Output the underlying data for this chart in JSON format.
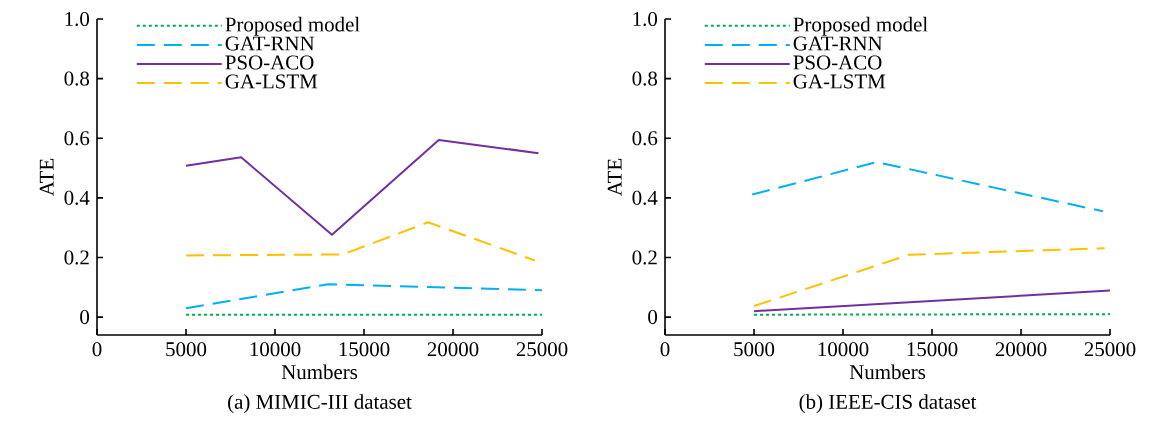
{
  "chart_data": [
    {
      "type": "line",
      "title": "(a) MIMIC-III dataset",
      "xlabel": "Numbers",
      "ylabel": "ATE",
      "xlim": [
        0,
        25000
      ],
      "ylim": [
        -0.06,
        1.0
      ],
      "xticks": [
        0,
        5000,
        10000,
        15000,
        20000,
        25000
      ],
      "yticks": [
        0,
        0.2,
        0.4,
        0.6,
        0.8,
        {
          "value": 1.0,
          "label": "1.0"
        }
      ],
      "legend": "top left",
      "series": [
        {
          "name": "Proposed model",
          "color": "#00b050",
          "line_style": "dotted",
          "x": [
            5000,
            25000
          ],
          "values": [
            0.008,
            0.008
          ]
        },
        {
          "name": "GAT-RNN",
          "color": "#00b0f0",
          "line_style": "dashed",
          "x": [
            5000,
            13000,
            25000
          ],
          "values": [
            0.03,
            0.11,
            0.09
          ]
        },
        {
          "name": "PSO-ACO",
          "color": "#7030a0",
          "line_style": "solid",
          "x": [
            5000,
            8100,
            13200,
            19200,
            24800
          ],
          "values": [
            0.508,
            0.536,
            0.276,
            0.594,
            0.55
          ]
        },
        {
          "name": "GA-LSTM",
          "color": "#ffc000",
          "line_style": "dashed",
          "x": [
            5000,
            13800,
            18600,
            24600
          ],
          "values": [
            0.207,
            0.21,
            0.318,
            0.19
          ]
        }
      ]
    },
    {
      "type": "line",
      "title": "(b) IEEE-CIS dataset",
      "xlabel": "Numbers",
      "ylabel": "ATE",
      "xlim": [
        0,
        25000
      ],
      "ylim": [
        -0.06,
        1.0
      ],
      "xticks": [
        0,
        5000,
        10000,
        15000,
        20000,
        25000
      ],
      "yticks": [
        0,
        0.2,
        0.4,
        0.6,
        0.8,
        {
          "value": 1.0,
          "label": "1.0"
        }
      ],
      "legend": "top left",
      "series": [
        {
          "name": "Proposed model",
          "color": "#00b050",
          "line_style": "dotted",
          "x": [
            5000,
            25000
          ],
          "values": [
            0.008,
            0.01
          ]
        },
        {
          "name": "GAT-RNN",
          "color": "#00b0f0",
          "line_style": "dashed",
          "x": [
            4900,
            11900,
            24600
          ],
          "values": [
            0.411,
            0.52,
            0.355
          ]
        },
        {
          "name": "PSO-ACO",
          "color": "#7030a0",
          "line_style": "solid",
          "x": [
            5000,
            25000
          ],
          "values": [
            0.02,
            0.089
          ]
        },
        {
          "name": "GA-LSTM",
          "color": "#ffc000",
          "line_style": "dashed",
          "x": [
            5000,
            13700,
            24700
          ],
          "values": [
            0.037,
            0.209,
            0.231
          ]
        }
      ]
    }
  ]
}
